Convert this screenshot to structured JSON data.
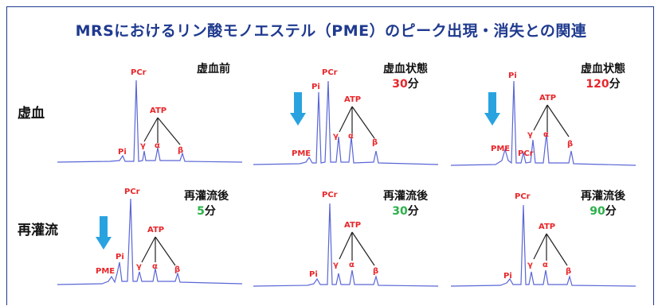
{
  "title": "MRSにおけるリン酸モノエステル（PME）のピーク出現・消失との関連",
  "colors": {
    "title": "#1f3a8f",
    "peak_label": "#e8262a",
    "ischemia_value": "#e8262a",
    "reperfusion_value": "#2bb04a",
    "spectrum": "#5a66d6",
    "arrow": "#29a3e0"
  },
  "rows": [
    {
      "label": "虚血"
    },
    {
      "label": "再灌流"
    }
  ],
  "panels": [
    {
      "line1": "虚血前",
      "value": "",
      "unit": "",
      "arrow": false,
      "peaks": {
        "pme": "",
        "pi": "Pi",
        "pcr": "PCr",
        "atp": "ATP",
        "g": "γ",
        "a": "α",
        "b": "β"
      }
    },
    {
      "line1": "虚血状態",
      "value": "30",
      "unit": "分",
      "arrow": true,
      "peaks": {
        "pme": "PME",
        "pi": "Pi",
        "pcr": "PCr",
        "atp": "ATP",
        "g": "γ",
        "a": "α",
        "b": "β"
      }
    },
    {
      "line1": "虚血状態",
      "value": "120",
      "unit": "分",
      "arrow": true,
      "peaks": {
        "pme": "PME",
        "pi": "Pi",
        "pcr": "PCr",
        "atp": "ATP",
        "g": "γ",
        "a": "α",
        "b": "β"
      }
    },
    {
      "line1": "再灌流後",
      "value": "5",
      "unit": "分",
      "arrow": true,
      "peaks": {
        "pme": "PME",
        "pi": "Pi",
        "pcr": "PCr",
        "atp": "ATP",
        "g": "γ",
        "a": "α",
        "b": "β"
      }
    },
    {
      "line1": "再灌流後",
      "value": "30",
      "unit": "分",
      "arrow": false,
      "peaks": {
        "pme": "",
        "pi": "Pi",
        "pcr": "PCr",
        "atp": "ATP",
        "g": "γ",
        "a": "α",
        "b": "β"
      }
    },
    {
      "line1": "再灌流後",
      "value": "90",
      "unit": "分",
      "arrow": false,
      "peaks": {
        "pme": "",
        "pi": "Pi",
        "pcr": "PCr",
        "atp": "ATP",
        "g": "γ",
        "a": "α",
        "b": "β"
      }
    }
  ]
}
